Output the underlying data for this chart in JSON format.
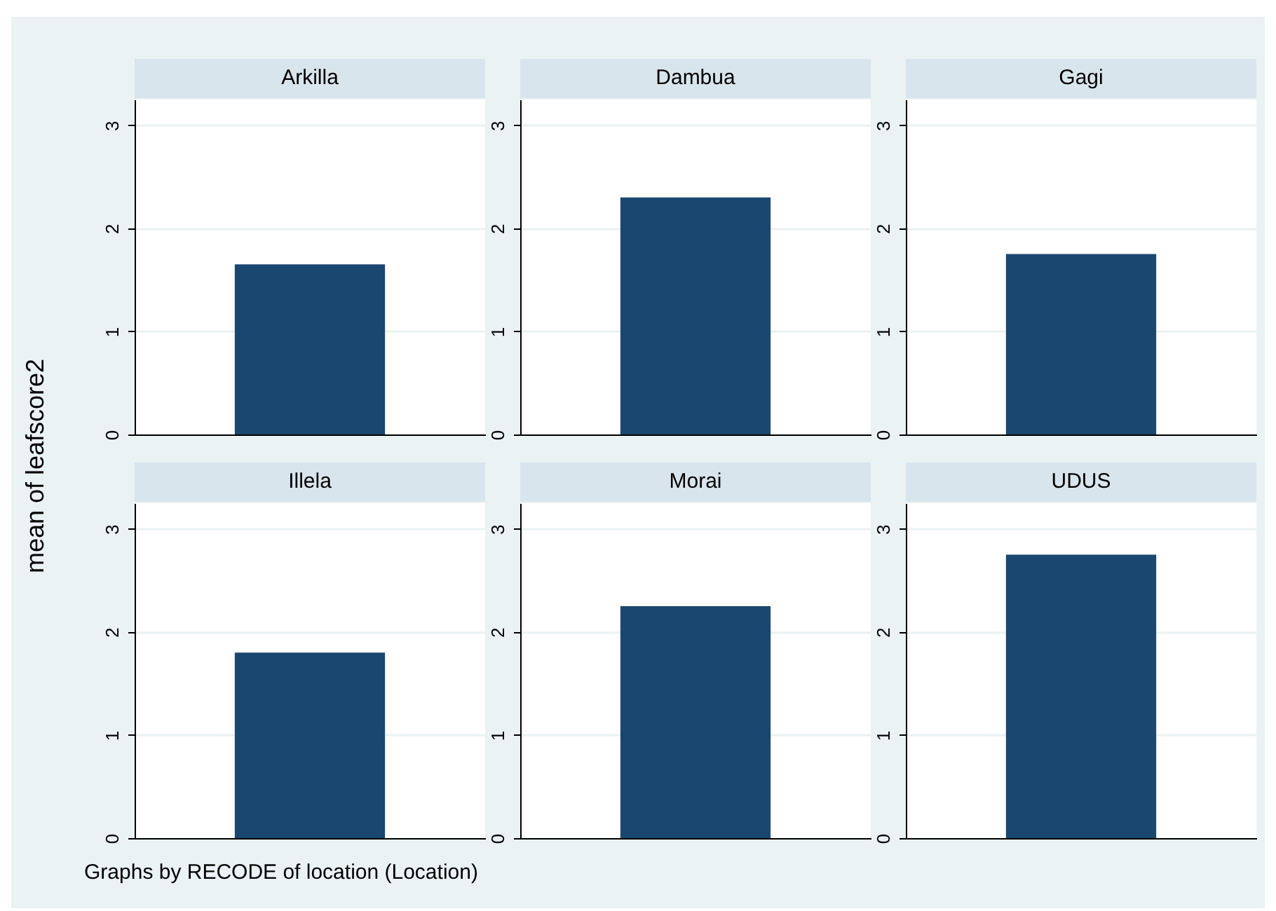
{
  "chart_data": [
    {
      "type": "bar",
      "title": "Arkilla",
      "ylabel": "mean of leafscore2",
      "categories": [
        null
      ],
      "values": [
        1.65
      ],
      "color": "#1a476f",
      "ylim": [
        0,
        3.25
      ],
      "yticks": [
        0,
        1,
        2,
        3
      ],
      "grid": "y"
    },
    {
      "type": "bar",
      "title": "Dambua",
      "categories": [
        null
      ],
      "values": [
        2.3
      ],
      "color": "#1a476f",
      "ylim": [
        0,
        3.25
      ],
      "yticks": [
        0,
        1,
        2,
        3
      ],
      "grid": "y"
    },
    {
      "type": "bar",
      "title": "Gagi",
      "categories": [
        null
      ],
      "values": [
        1.75
      ],
      "color": "#1a476f",
      "ylim": [
        0,
        3.25
      ],
      "yticks": [
        0,
        1,
        2,
        3
      ],
      "grid": "y"
    },
    {
      "type": "bar",
      "title": "Illela",
      "annotations": [
        "Graphs by RECODE of location (Location)"
      ],
      "categories": [
        null
      ],
      "values": [
        1.8
      ],
      "color": "#1a476f",
      "ylim": [
        0,
        3.25
      ],
      "yticks": [
        0,
        1,
        2,
        3
      ],
      "grid": "y"
    },
    {
      "type": "bar",
      "title": "Morai",
      "categories": [
        null
      ],
      "values": [
        2.25
      ],
      "color": "#1a476f",
      "ylim": [
        0,
        3.25
      ],
      "yticks": [
        0,
        1,
        2,
        3
      ],
      "grid": "y"
    },
    {
      "type": "bar",
      "title": "UDUS",
      "categories": [
        null
      ],
      "values": [
        2.75
      ],
      "color": "#1a476f",
      "ylim": [
        0,
        3.25
      ],
      "yticks": [
        0,
        1,
        2,
        3
      ],
      "grid": "y"
    }
  ]
}
